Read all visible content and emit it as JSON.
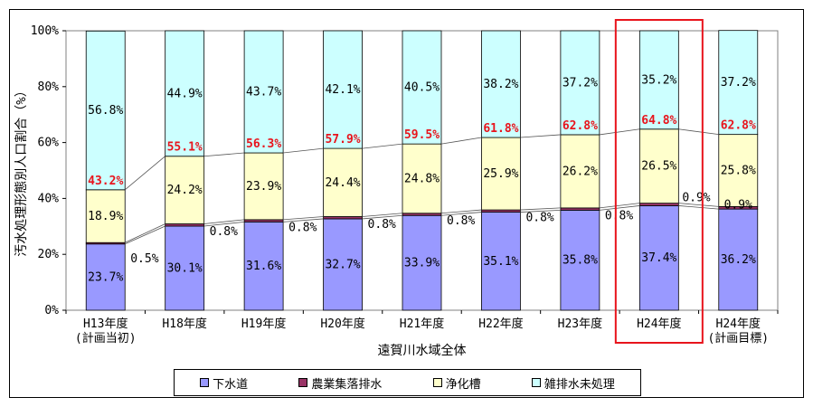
{
  "chart_data": {
    "type": "bar",
    "stacked": true,
    "percent_stacked": true,
    "categories": [
      "H13年度\n(計画当初)",
      "H18年度",
      "H19年度",
      "H20年度",
      "H21年度",
      "H22年度",
      "H23年度",
      "H24年度",
      "H24年度\n(計画目標)"
    ],
    "series": [
      {
        "name": "下水道",
        "color": "#9999ff",
        "values": [
          23.7,
          30.1,
          31.6,
          32.7,
          33.9,
          35.1,
          35.8,
          37.4,
          36.2
        ]
      },
      {
        "name": "農業集落排水",
        "color": "#993366",
        "values": [
          0.5,
          0.8,
          0.8,
          0.8,
          0.8,
          0.8,
          0.8,
          0.9,
          0.9
        ]
      },
      {
        "name": "浄化槽",
        "color": "#ffffcc",
        "values": [
          18.9,
          24.2,
          23.9,
          24.4,
          24.8,
          25.9,
          26.2,
          26.5,
          25.8
        ]
      },
      {
        "name": "雑排水未処理",
        "color": "#ccffff",
        "values": [
          56.8,
          44.9,
          43.7,
          42.1,
          40.5,
          38.2,
          37.2,
          35.2,
          37.2
        ]
      }
    ],
    "totals_label_values": [
      "43.2%",
      "55.1%",
      "56.3%",
      "57.9%",
      "59.5%",
      "61.8%",
      "62.8%",
      "64.8%",
      "62.8%"
    ],
    "sewer_labels": [
      "23.7%",
      "30.1%",
      "31.6%",
      "32.7%",
      "33.9%",
      "35.1%",
      "35.8%",
      "37.4%",
      "36.2%"
    ],
    "agri_labels": [
      "0.5%",
      "0.8%",
      "0.8%",
      "0.8%",
      "0.8%",
      "0.8%",
      "0.8%",
      "0.9%",
      "0.9%"
    ],
    "septic_labels": [
      "18.9%",
      "24.2%",
      "23.9%",
      "24.4%",
      "24.8%",
      "25.9%",
      "26.2%",
      "26.5%",
      "25.8%"
    ],
    "untreated_labels": [
      "56.8%",
      "44.9%",
      "43.7%",
      "42.1%",
      "40.5%",
      "38.2%",
      "37.2%",
      "35.2%",
      "37.2%"
    ],
    "ylabel": "汚水処理形態別人口割合（%）",
    "xlabel": "遠賀川水域全体",
    "ylim": [
      0,
      100
    ],
    "yticks": [
      "0%",
      "20%",
      "40%",
      "60%",
      "80%",
      "100%"
    ],
    "highlight_category_index": 7,
    "highlight_color": "#e8141c",
    "grid": false,
    "legend_position": "bottom"
  }
}
